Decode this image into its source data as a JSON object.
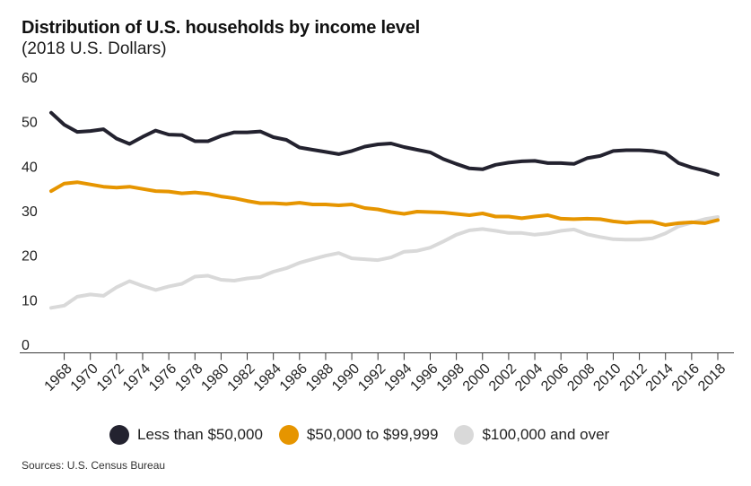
{
  "chart_data": {
    "type": "line",
    "title": "Distribution of U.S. households by income level",
    "subtitle": "(2018 U.S. Dollars)",
    "source": "Sources: U.S. Census Bureau",
    "xlabel": "",
    "ylabel": "",
    "ylim": [
      0,
      60
    ],
    "yticks": [
      0,
      10,
      20,
      30,
      40,
      50,
      60
    ],
    "grid": false,
    "x": [
      1967,
      1968,
      1969,
      1970,
      1971,
      1972,
      1973,
      1974,
      1975,
      1976,
      1977,
      1978,
      1979,
      1980,
      1981,
      1982,
      1983,
      1984,
      1985,
      1986,
      1987,
      1988,
      1989,
      1990,
      1991,
      1992,
      1993,
      1994,
      1995,
      1996,
      1997,
      1998,
      1999,
      2000,
      2001,
      2002,
      2003,
      2004,
      2005,
      2006,
      2007,
      2008,
      2009,
      2010,
      2011,
      2012,
      2013,
      2014,
      2015,
      2016,
      2017,
      2018
    ],
    "xtick_labels": [
      "1968",
      "1970",
      "1972",
      "1974",
      "1976",
      "1978",
      "1980",
      "1982",
      "1984",
      "1986",
      "1988",
      "1990",
      "1992",
      "1994",
      "1996",
      "1998",
      "2000",
      "2002",
      "2004",
      "2006",
      "2008",
      "2010",
      "2012",
      "2014",
      "2016",
      "2018"
    ],
    "series": [
      {
        "name": "Less than $50,000",
        "color": "#23222f",
        "values": [
          52.0,
          49.3,
          47.7,
          47.9,
          48.3,
          46.2,
          45.0,
          46.6,
          48.0,
          47.1,
          47.0,
          45.6,
          45.6,
          46.8,
          47.6,
          47.6,
          47.8,
          46.5,
          45.9,
          44.2,
          43.7,
          43.2,
          42.7,
          43.4,
          44.4,
          44.9,
          45.1,
          44.3,
          43.7,
          43.1,
          41.6,
          40.5,
          39.5,
          39.3,
          40.3,
          40.8,
          41.1,
          41.2,
          40.7,
          40.7,
          40.5,
          41.8,
          42.3,
          43.4,
          43.6,
          43.6,
          43.4,
          42.9,
          40.7,
          39.7,
          39.0,
          38.1
        ]
      },
      {
        "name": "$50,000 to $99,999",
        "color": "#e69500",
        "values": [
          34.4,
          36.1,
          36.4,
          35.9,
          35.4,
          35.2,
          35.4,
          34.9,
          34.4,
          34.3,
          33.9,
          34.1,
          33.8,
          33.2,
          32.8,
          32.2,
          31.7,
          31.7,
          31.5,
          31.8,
          31.4,
          31.4,
          31.2,
          31.4,
          30.6,
          30.3,
          29.7,
          29.3,
          29.8,
          29.7,
          29.6,
          29.3,
          29.0,
          29.4,
          28.7,
          28.7,
          28.3,
          28.7,
          29.0,
          28.2,
          28.1,
          28.2,
          28.1,
          27.6,
          27.3,
          27.5,
          27.5,
          26.8,
          27.2,
          27.4,
          27.2,
          27.9
        ]
      },
      {
        "name": "$100,000 and over",
        "color": "#d9d9d9",
        "values": [
          8.2,
          8.7,
          10.7,
          11.2,
          10.9,
          12.8,
          14.2,
          13.1,
          12.2,
          13.0,
          13.6,
          15.2,
          15.4,
          14.5,
          14.3,
          14.8,
          15.1,
          16.3,
          17.1,
          18.3,
          19.1,
          19.9,
          20.5,
          19.3,
          19.1,
          18.9,
          19.5,
          20.8,
          21.0,
          21.7,
          23.1,
          24.6,
          25.6,
          25.9,
          25.5,
          25.0,
          25.0,
          24.6,
          24.9,
          25.5,
          25.8,
          24.7,
          24.1,
          23.6,
          23.5,
          23.5,
          23.8,
          24.9,
          26.5,
          27.3,
          28.1,
          28.6
        ]
      }
    ]
  }
}
